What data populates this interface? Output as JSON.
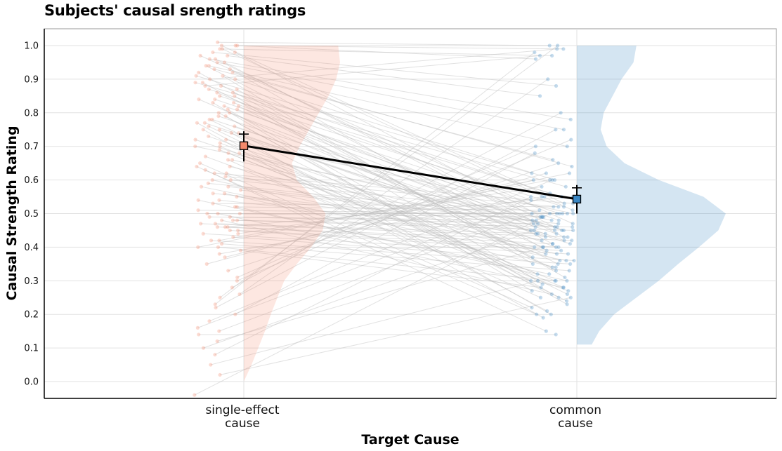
{
  "chart_data": {
    "type": "raincloud",
    "title": "Subjects' causal srength ratings",
    "xlabel": "Target Cause",
    "ylabel": "Causal Strength Rating",
    "ylim": [
      -0.05,
      1.05
    ],
    "yticks": [
      "0.0",
      "0.1",
      "0.2",
      "0.3",
      "0.4",
      "0.5",
      "0.6",
      "0.7",
      "0.8",
      "0.9",
      "1.0"
    ],
    "grid": true,
    "categories": [
      {
        "line1": "single-effect",
        "line2": "cause"
      },
      {
        "line1": "common",
        "line2": "cause"
      }
    ],
    "colors": {
      "single_effect": "#f4896b",
      "common": "#3a87c4",
      "mean_line": "#000000",
      "paired_lines": "#bdbdbd"
    },
    "means": [
      {
        "category": "single-effect cause",
        "mean": 0.702,
        "ci": [
          0.655,
          0.745
        ]
      },
      {
        "category": "common cause",
        "mean": 0.543,
        "ci": [
          0.5,
          0.585
        ]
      }
    ],
    "violins": [
      {
        "category": "single-effect cause",
        "density_y": [
          0.0,
          0.05,
          0.1,
          0.15,
          0.2,
          0.25,
          0.3,
          0.35,
          0.4,
          0.45,
          0.5,
          0.55,
          0.6,
          0.65,
          0.7,
          0.75,
          0.8,
          0.85,
          0.9,
          0.95,
          1.0
        ],
        "density_w": [
          0.0,
          0.08,
          0.15,
          0.22,
          0.28,
          0.35,
          0.42,
          0.55,
          0.7,
          0.82,
          0.85,
          0.72,
          0.55,
          0.5,
          0.58,
          0.68,
          0.78,
          0.88,
          0.96,
          1.0,
          0.98
        ]
      },
      {
        "category": "common cause",
        "density_y": [
          0.11,
          0.15,
          0.2,
          0.25,
          0.3,
          0.35,
          0.4,
          0.45,
          0.5,
          0.55,
          0.6,
          0.65,
          0.7,
          0.75,
          0.8,
          0.85,
          0.9,
          0.95,
          1.0
        ],
        "density_w": [
          0.1,
          0.15,
          0.25,
          0.4,
          0.55,
          0.68,
          0.82,
          0.95,
          1.0,
          0.85,
          0.55,
          0.32,
          0.2,
          0.16,
          0.18,
          0.24,
          0.3,
          0.38,
          0.4
        ]
      }
    ],
    "pairs": [
      [
        1.01,
        1.0
      ],
      [
        1.0,
        0.99
      ],
      [
        0.99,
        0.97
      ],
      [
        1.0,
        0.96
      ],
      [
        0.98,
        0.88
      ],
      [
        0.97,
        0.85
      ],
      [
        0.96,
        0.78
      ],
      [
        0.95,
        0.75
      ],
      [
        0.94,
        0.7
      ],
      [
        0.93,
        0.66
      ],
      [
        0.92,
        0.64
      ],
      [
        0.91,
        0.62
      ],
      [
        0.9,
        0.6
      ],
      [
        0.89,
        0.58
      ],
      [
        0.88,
        0.56
      ],
      [
        0.87,
        0.55
      ],
      [
        0.86,
        0.54
      ],
      [
        0.85,
        0.52
      ],
      [
        0.84,
        0.5
      ],
      [
        0.83,
        0.49
      ],
      [
        0.82,
        0.48
      ],
      [
        0.81,
        0.47
      ],
      [
        0.8,
        0.46
      ],
      [
        0.79,
        0.45
      ],
      [
        0.78,
        0.44
      ],
      [
        0.77,
        0.43
      ],
      [
        0.76,
        0.42
      ],
      [
        0.75,
        0.41
      ],
      [
        0.74,
        0.4
      ],
      [
        0.73,
        0.38
      ],
      [
        0.72,
        0.36
      ],
      [
        0.71,
        0.34
      ],
      [
        0.7,
        0.32
      ],
      [
        0.69,
        0.3
      ],
      [
        0.68,
        0.28
      ],
      [
        0.67,
        0.27
      ],
      [
        0.66,
        0.25
      ],
      [
        0.65,
        0.22
      ],
      [
        0.64,
        0.2
      ],
      [
        0.63,
        0.15
      ],
      [
        0.62,
        0.53
      ],
      [
        0.61,
        0.52
      ],
      [
        0.6,
        0.5
      ],
      [
        0.59,
        0.49
      ],
      [
        0.58,
        0.48
      ],
      [
        0.57,
        0.47
      ],
      [
        0.56,
        0.46
      ],
      [
        0.55,
        0.45
      ],
      [
        0.54,
        0.44
      ],
      [
        0.53,
        0.52
      ],
      [
        0.52,
        0.51
      ],
      [
        0.51,
        0.5
      ],
      [
        0.5,
        0.5
      ],
      [
        0.5,
        0.49
      ],
      [
        0.49,
        0.48
      ],
      [
        0.49,
        0.47
      ],
      [
        0.48,
        0.46
      ],
      [
        0.48,
        0.45
      ],
      [
        0.47,
        0.44
      ],
      [
        0.47,
        0.43
      ],
      [
        0.46,
        0.42
      ],
      [
        0.46,
        0.41
      ],
      [
        0.45,
        0.4
      ],
      [
        0.45,
        0.39
      ],
      [
        0.44,
        0.38
      ],
      [
        0.43,
        0.36
      ],
      [
        0.42,
        0.35
      ],
      [
        0.41,
        0.33
      ],
      [
        0.4,
        0.3
      ],
      [
        0.39,
        0.28
      ],
      [
        0.38,
        0.55
      ],
      [
        0.37,
        0.6
      ],
      [
        0.35,
        0.62
      ],
      [
        0.33,
        0.65
      ],
      [
        0.31,
        0.7
      ],
      [
        0.3,
        0.72
      ],
      [
        0.28,
        0.8
      ],
      [
        0.26,
        0.9
      ],
      [
        0.25,
        1.0
      ],
      [
        0.23,
        0.98
      ],
      [
        0.22,
        0.75
      ],
      [
        0.2,
        0.68
      ],
      [
        0.18,
        0.6
      ],
      [
        0.16,
        0.55
      ],
      [
        0.15,
        0.5
      ],
      [
        0.14,
        0.14
      ],
      [
        0.12,
        0.4
      ],
      [
        0.1,
        0.45
      ],
      [
        0.08,
        0.55
      ],
      [
        0.05,
        0.3
      ],
      [
        0.02,
        0.25
      ],
      [
        -0.04,
        0.5
      ],
      [
        0.9,
        0.99
      ],
      [
        0.88,
        0.97
      ],
      [
        0.86,
        0.45
      ],
      [
        0.84,
        0.4
      ],
      [
        0.82,
        0.35
      ],
      [
        0.8,
        0.3
      ],
      [
        0.78,
        0.26
      ],
      [
        0.76,
        0.24
      ],
      [
        0.74,
        0.2
      ],
      [
        0.72,
        0.5
      ],
      [
        0.7,
        0.48
      ],
      [
        0.68,
        0.46
      ],
      [
        0.66,
        0.44
      ],
      [
        0.64,
        0.42
      ],
      [
        0.62,
        0.4
      ],
      [
        0.6,
        0.38
      ],
      [
        0.58,
        0.36
      ],
      [
        0.56,
        0.34
      ],
      [
        0.54,
        0.32
      ],
      [
        0.52,
        0.3
      ],
      [
        0.5,
        0.28
      ],
      [
        0.48,
        0.26
      ],
      [
        0.46,
        0.55
      ],
      [
        0.44,
        0.58
      ],
      [
        0.42,
        0.6
      ],
      [
        0.4,
        0.62
      ],
      [
        1.0,
        0.53
      ],
      [
        0.99,
        0.51
      ],
      [
        0.98,
        0.49
      ],
      [
        0.97,
        0.47
      ],
      [
        0.96,
        0.45
      ],
      [
        0.95,
        0.43
      ],
      [
        0.94,
        0.41
      ],
      [
        0.93,
        0.39
      ],
      [
        0.92,
        0.37
      ],
      [
        0.91,
        0.35
      ],
      [
        0.89,
        0.33
      ],
      [
        0.87,
        0.31
      ],
      [
        0.85,
        0.29
      ],
      [
        0.83,
        0.27
      ],
      [
        0.81,
        0.25
      ],
      [
        0.79,
        0.23
      ],
      [
        0.77,
        0.21
      ],
      [
        0.75,
        0.19
      ]
    ]
  }
}
